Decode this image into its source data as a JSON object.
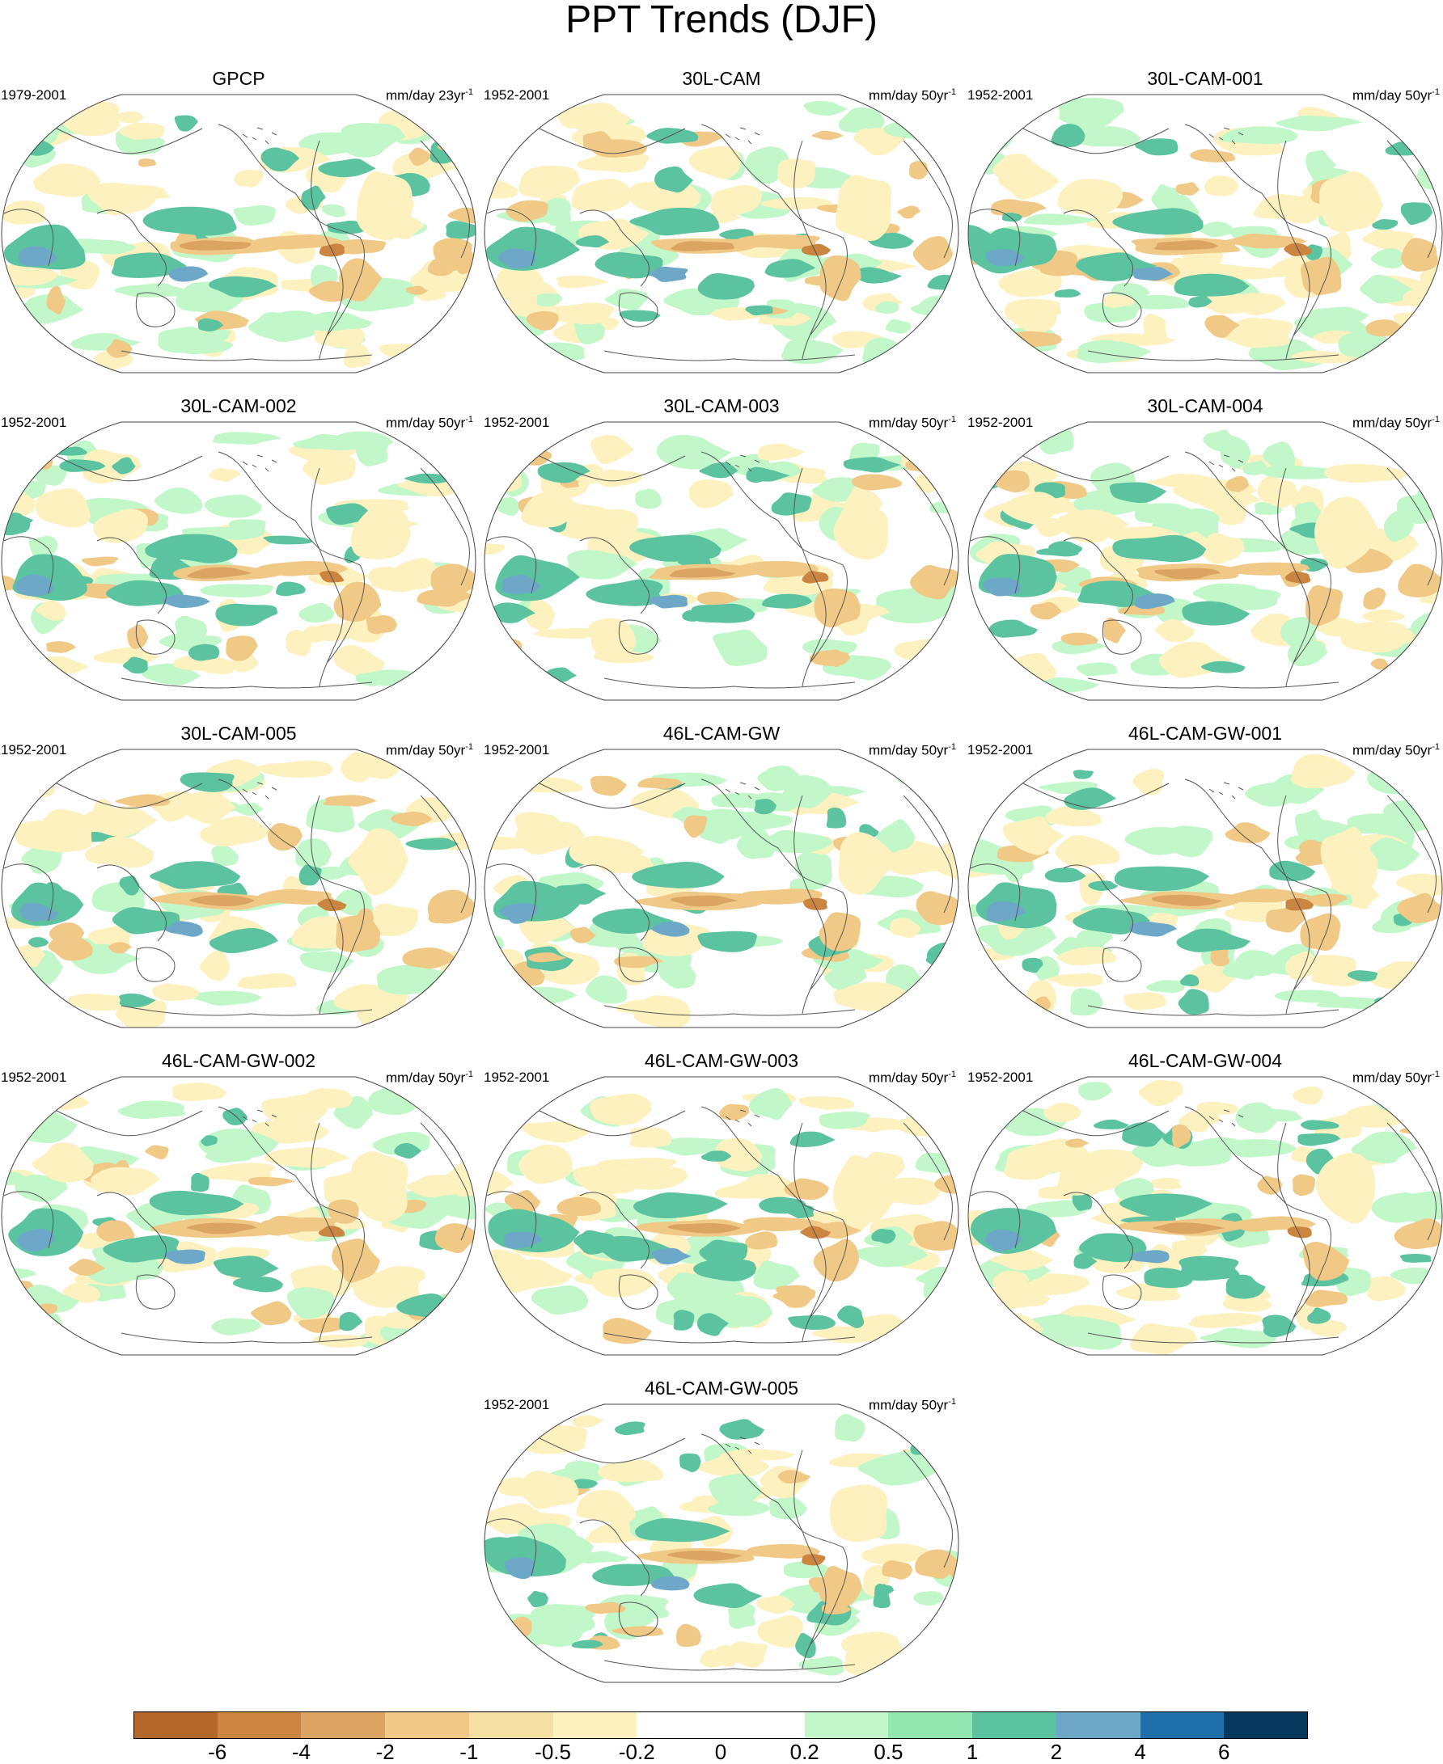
{
  "title": "PPT Trends (DJF)",
  "panels": [
    {
      "title": "GPCP",
      "period": "1979-2001",
      "units": "mm/day 23yr",
      "units_exp": "-1"
    },
    {
      "title": "30L-CAM",
      "period": "1952-2001",
      "units": "mm/day 50yr",
      "units_exp": "-1"
    },
    {
      "title": "30L-CAM-001",
      "period": "1952-2001",
      "units": "mm/day 50yr",
      "units_exp": "-1"
    },
    {
      "title": "30L-CAM-002",
      "period": "1952-2001",
      "units": "mm/day 50yr",
      "units_exp": "-1"
    },
    {
      "title": "30L-CAM-003",
      "period": "1952-2001",
      "units": "mm/day 50yr",
      "units_exp": "-1"
    },
    {
      "title": "30L-CAM-004",
      "period": "1952-2001",
      "units": "mm/day 50yr",
      "units_exp": "-1"
    },
    {
      "title": "30L-CAM-005",
      "period": "1952-2001",
      "units": "mm/day 50yr",
      "units_exp": "-1"
    },
    {
      "title": "46L-CAM-GW",
      "period": "1952-2001",
      "units": "mm/day 50yr",
      "units_exp": "-1"
    },
    {
      "title": "46L-CAM-GW-001",
      "period": "1952-2001",
      "units": "mm/day 50yr",
      "units_exp": "-1"
    },
    {
      "title": "46L-CAM-GW-002",
      "period": "1952-2001",
      "units": "mm/day 50yr",
      "units_exp": "-1"
    },
    {
      "title": "46L-CAM-GW-003",
      "period": "1952-2001",
      "units": "mm/day 50yr",
      "units_exp": "-1"
    },
    {
      "title": "46L-CAM-GW-004",
      "period": "1952-2001",
      "units": "mm/day 50yr",
      "units_exp": "-1"
    },
    {
      "title": "46L-CAM-GW-005",
      "period": "1952-2001",
      "units": "mm/day 50yr",
      "units_exp": "-1"
    }
  ],
  "colorbar": {
    "colors": [
      "#b5672a",
      "#cc8540",
      "#dca462",
      "#f0c986",
      "#f6dfa3",
      "#fdf1bf",
      "#ffffff",
      "#ffffff",
      "#c2f7ca",
      "#91e7ad",
      "#5cc3a0",
      "#6ea8c8",
      "#1f6fab",
      "#06375d"
    ],
    "labels": [
      "-6",
      "-4",
      "-2",
      "-1",
      "-0.5",
      "-0.2",
      "0",
      "0.2",
      "0.5",
      "1",
      "2",
      "4",
      "6"
    ]
  },
  "map_palette": {
    "ocean": "#ffffff",
    "land_line": "#555555",
    "wet_light": "#c2f7ca",
    "wet_mid": "#5cc3a0",
    "wet_strong": "#6ea8c8",
    "dry_light": "#fdf1bf",
    "dry_mid": "#f0c986",
    "dry_strong": "#dca462",
    "dry_deep": "#cc8540"
  }
}
